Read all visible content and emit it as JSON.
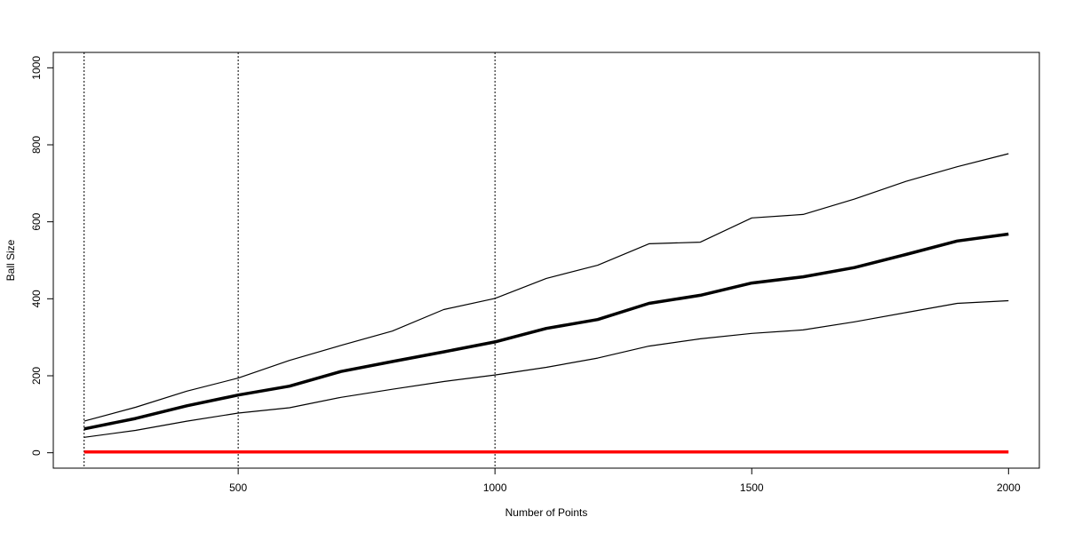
{
  "chart_data": {
    "type": "line",
    "title": "",
    "xlabel": "Number of Points",
    "ylabel": "Ball Size",
    "xlim": [
      140,
      2060
    ],
    "ylim": [
      -40,
      1040
    ],
    "xticks": [
      500,
      1000,
      1500,
      2000
    ],
    "yticks": [
      0,
      200,
      400,
      600,
      800,
      1000
    ],
    "grid": false,
    "legend": "none",
    "vlines": [
      200,
      500,
      1000
    ],
    "vline_color": "#000000",
    "series": [
      {
        "color": "#000000",
        "style": "thin",
        "x": [
          200,
          300,
          400,
          500,
          600,
          700,
          800,
          900,
          1000,
          1100,
          1200,
          1300,
          1400,
          1500,
          1600,
          1700,
          1800,
          1900,
          2000
        ],
        "values": [
          82,
          118,
          160,
          194,
          240,
          279,
          316,
          372,
          401,
          453,
          487,
          543,
          547,
          610,
          619,
          659,
          705,
          743,
          777
        ]
      },
      {
        "color": "#000000",
        "style": "thick",
        "x": [
          200,
          300,
          400,
          500,
          600,
          700,
          800,
          900,
          1000,
          1100,
          1200,
          1300,
          1400,
          1500,
          1600,
          1700,
          1800,
          1900,
          2000
        ],
        "values": [
          62,
          89,
          122,
          150,
          173,
          211,
          237,
          262,
          288,
          323,
          346,
          388,
          409,
          441,
          457,
          481,
          515,
          550,
          568
        ]
      },
      {
        "color": "#000000",
        "style": "thin",
        "x": [
          200,
          300,
          400,
          500,
          600,
          700,
          800,
          900,
          1000,
          1100,
          1200,
          1300,
          1400,
          1500,
          1600,
          1700,
          1800,
          1900,
          2000
        ],
        "values": [
          40,
          58,
          82,
          103,
          117,
          144,
          165,
          185,
          202,
          222,
          246,
          277,
          296,
          310,
          319,
          340,
          364,
          388,
          395
        ]
      },
      {
        "color": "#ff0000",
        "style": "thick",
        "x": [
          200,
          2000
        ],
        "values": [
          2,
          2
        ]
      }
    ]
  }
}
